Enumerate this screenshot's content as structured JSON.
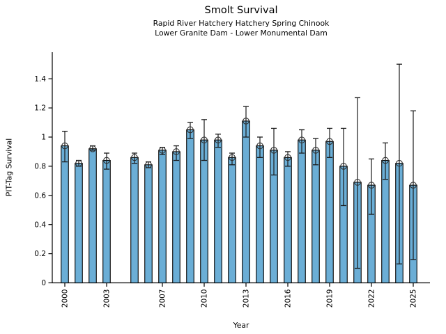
{
  "chart_data": {
    "type": "bar",
    "title": "Smolt Survival",
    "subtitle1": "Rapid River Hatchery Hatchery Spring Chinook",
    "subtitle2": "Lower Granite Dam - Lower Monumental Dam",
    "xlabel": "Year",
    "ylabel": "PIT-Tag Survival",
    "bar_color": "#6baed6",
    "edge_color": "#000000",
    "errorbar_color": "#1a1a1a",
    "background_color": "#ffffff",
    "x": [
      2000,
      2001,
      2002,
      2003,
      2005,
      2006,
      2007,
      2008,
      2009,
      2010,
      2011,
      2012,
      2013,
      2014,
      2015,
      2016,
      2017,
      2018,
      2019,
      2020,
      2021,
      2022,
      2023,
      2024,
      2025
    ],
    "values": [
      0.94,
      0.82,
      0.92,
      0.84,
      0.86,
      0.81,
      0.91,
      0.9,
      1.05,
      0.98,
      0.98,
      0.86,
      1.11,
      0.94,
      0.91,
      0.86,
      0.98,
      0.91,
      0.97,
      0.8,
      0.69,
      0.67,
      0.84,
      0.82,
      0.67
    ],
    "err_low": [
      0.83,
      0.8,
      0.91,
      0.78,
      0.82,
      0.79,
      0.88,
      0.84,
      0.99,
      0.84,
      0.93,
      0.81,
      1.0,
      0.86,
      0.74,
      0.8,
      0.89,
      0.81,
      0.86,
      0.53,
      0.1,
      0.47,
      0.71,
      0.13,
      0.16
    ],
    "err_high": [
      1.04,
      0.84,
      0.94,
      0.89,
      0.89,
      0.83,
      0.93,
      0.94,
      1.1,
      1.12,
      1.02,
      0.89,
      1.21,
      1.0,
      1.06,
      0.9,
      1.05,
      0.99,
      1.06,
      1.06,
      1.27,
      0.85,
      0.96,
      1.5,
      1.18
    ],
    "missing_years": [
      2004
    ],
    "xticks": [
      2000,
      2003,
      2007,
      2010,
      2013,
      2016,
      2019,
      2022,
      2025
    ],
    "xtick_labels": [
      "2000",
      "2003",
      "2007",
      "2010",
      "2013",
      "2016",
      "2019",
      "2022",
      "2025"
    ],
    "yticks": [
      0,
      0.2,
      0.4,
      0.6,
      0.8,
      1,
      1.2,
      1.4
    ],
    "ytick_labels": [
      "0",
      "0.2",
      "0.4",
      "0.6",
      "0.8",
      "1",
      "1.2",
      "1.4"
    ],
    "xlim": [
      1999.1,
      2026.2
    ],
    "ylim": [
      0,
      1.58
    ],
    "grid": false,
    "legend": null,
    "marker": "open-circle"
  }
}
